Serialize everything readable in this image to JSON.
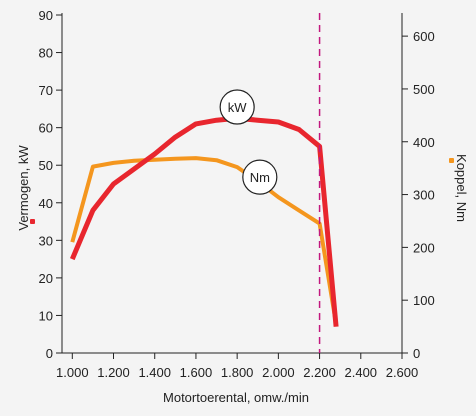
{
  "chart_data": {
    "type": "line",
    "x_axis": {
      "label": "Motortoerental, omw./min",
      "range": [
        950,
        2600
      ],
      "ticks": [
        1000,
        1200,
        1400,
        1600,
        1800,
        2000,
        2200,
        2400,
        2600
      ],
      "tick_labels": [
        "1.000",
        "1.200",
        "1.400",
        "1.600",
        "1.800",
        "2.000",
        "2.200",
        "2.400",
        "2.600"
      ]
    },
    "y_left": {
      "label": "Vermogen, kW",
      "range": [
        0,
        90
      ],
      "ticks": [
        0,
        10,
        20,
        30,
        40,
        50,
        60,
        70,
        80,
        90
      ],
      "tick_labels": [
        "0",
        "10",
        "20",
        "30",
        "40",
        "50",
        "60",
        "70",
        "80",
        "90"
      ]
    },
    "y_right": {
      "label": "Koppel, Nm",
      "range": [
        0,
        640
      ],
      "ticks": [
        0,
        100,
        200,
        300,
        400,
        500,
        600
      ],
      "tick_labels": [
        "0",
        "100",
        "200",
        "300",
        "400",
        "500",
        "600"
      ]
    },
    "series": [
      {
        "name": "kW",
        "axis": "left",
        "color": "#e8262e",
        "x": [
          1000,
          1100,
          1200,
          1300,
          1400,
          1500,
          1600,
          1700,
          1800,
          1900,
          2000,
          2100,
          2200,
          2280
        ],
        "y": [
          25,
          38,
          45,
          49,
          53,
          57.5,
          61,
          62,
          62.5,
          62,
          61.5,
          59.5,
          55,
          7
        ]
      },
      {
        "name": "Nm",
        "axis": "right",
        "color": "#f4961e",
        "x": [
          1000,
          1100,
          1200,
          1300,
          1400,
          1500,
          1600,
          1700,
          1800,
          1900,
          2000,
          2100,
          2200,
          2280
        ],
        "y": [
          210,
          353,
          360,
          364,
          366,
          368,
          369,
          365,
          352,
          325,
          295,
          270,
          245,
          55
        ]
      }
    ],
    "annotations": [
      {
        "type": "vline",
        "x": 2200,
        "style": "dashed",
        "color": "#c2187e"
      },
      {
        "type": "circle_label",
        "text": "kW",
        "series": "kW",
        "x": 1800,
        "y": 65.5
      },
      {
        "type": "circle_label",
        "text": "Nm",
        "series": "Nm",
        "x": 1910,
        "y": 333
      }
    ],
    "grid": false,
    "legend": "none"
  }
}
